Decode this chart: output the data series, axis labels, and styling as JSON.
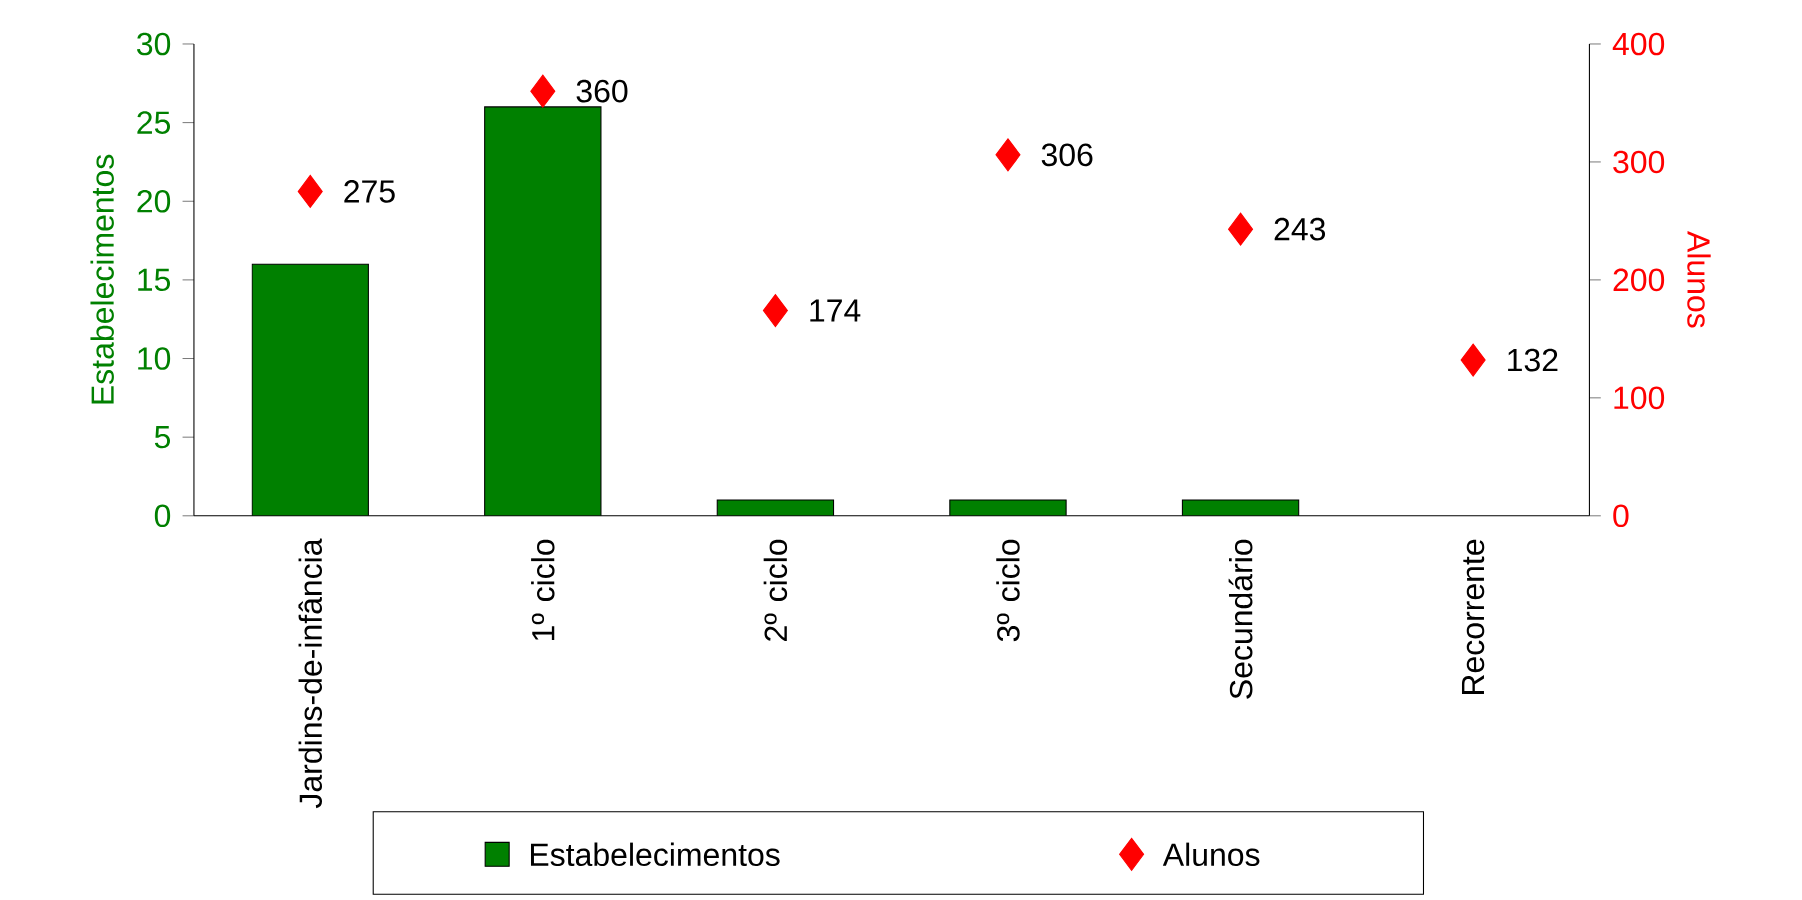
{
  "chart_data": {
    "type": "bar",
    "categories": [
      "Jardins-de-infância",
      "1º ciclo",
      "2º ciclo",
      "3º ciclo",
      "Secundário",
      "Recorrente"
    ],
    "ylabel": "Estabelecimentos",
    "y2label": "Alunos",
    "ylim": [
      0,
      30
    ],
    "yticks": [
      0,
      5,
      10,
      15,
      20,
      25,
      30
    ],
    "y2lim": [
      0,
      400
    ],
    "y2ticks": [
      0,
      100,
      200,
      300,
      400
    ],
    "legend": "bottom",
    "grid": false,
    "series": [
      {
        "name": "Estabelecimentos",
        "color": "#008000",
        "values": [
          16,
          26,
          1,
          1,
          1,
          null
        ]
      },
      {
        "name": "Alunos",
        "type": "scatter",
        "axis": "y2",
        "marker": "diamond",
        "color": "#ff0000",
        "values": [
          275,
          360,
          174,
          306,
          243,
          132
        ],
        "value_labels": [
          "275",
          "360",
          "174",
          "306",
          "243",
          "132"
        ]
      }
    ]
  }
}
